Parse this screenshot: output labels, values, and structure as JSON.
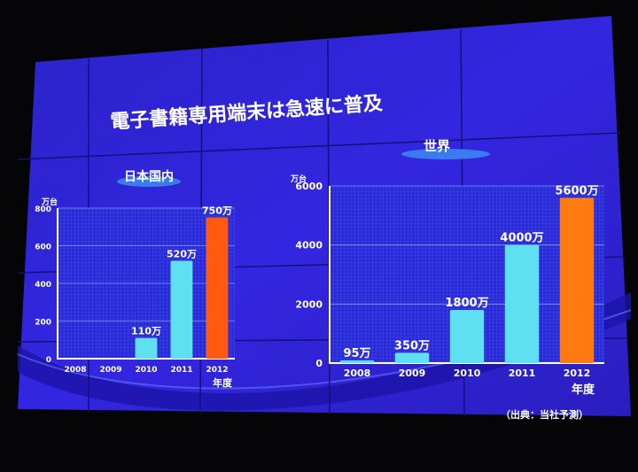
{
  "slide": {
    "title": "電子書籍専用端末は急速に普及",
    "source_note": "（出典：当社予測）"
  },
  "colors": {
    "background": "#2b1fd6",
    "bar_actual": "#5ee0f0",
    "bar_forecast": "#ff5a10",
    "bar_forecast_world": "#ff7a10",
    "label_pill": "#3a7cf0"
  },
  "chart_data": [
    {
      "type": "bar",
      "title": "日本国内",
      "ylabel": "万台",
      "xlabel": "年度",
      "ylim": [
        0,
        800
      ],
      "yticks": [
        "0",
        "200",
        "400",
        "600",
        "800"
      ],
      "categories": [
        "2008",
        "2009",
        "2010",
        "2011",
        "2012"
      ],
      "values": [
        null,
        null,
        110,
        520,
        750
      ],
      "data_labels": [
        "",
        "",
        "110万",
        "520万",
        "750万"
      ],
      "highlight": "2012",
      "grid": true
    },
    {
      "type": "bar",
      "title": "世界",
      "ylabel": "万台",
      "xlabel": "年度",
      "ylim": [
        0,
        6000
      ],
      "yticks": [
        "0",
        "2000",
        "4000",
        "6000"
      ],
      "categories": [
        "2008",
        "2009",
        "2010",
        "2011",
        "2012"
      ],
      "values": [
        95,
        350,
        1800,
        4000,
        5600
      ],
      "data_labels": [
        "95万",
        "350万",
        "1800万",
        "4000万",
        "5600万"
      ],
      "highlight": "2012",
      "grid": true
    }
  ]
}
